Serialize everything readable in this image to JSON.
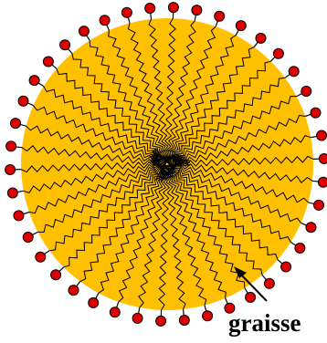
{
  "diagram": {
    "label": "graisse",
    "colors": {
      "core_fill": "#FFC000",
      "tail_stroke": "#000000",
      "head_fill": "#DD0000",
      "head_stroke": "#000000",
      "label_color": "#000000",
      "background": "#FFFFFF"
    }
  }
}
